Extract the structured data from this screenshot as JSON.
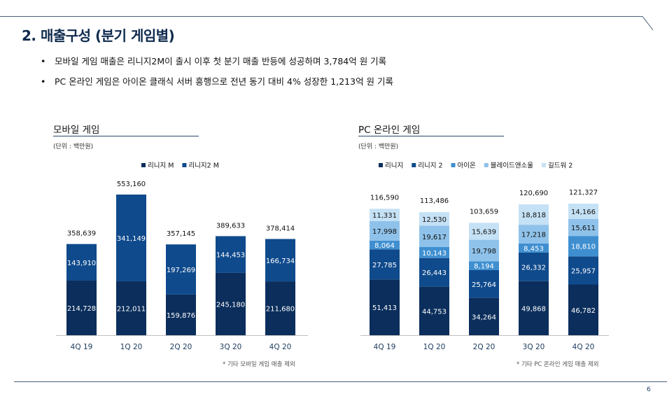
{
  "title": "2. 매출구성 (분기 게임별)",
  "bullets": [
    "모바일 게임 매출은 리니지2M이 출시 이후 첫 분기 매출 반등에 성공하며 3,784억 원 기록",
    "PC 온라인 게임은 아이온 클래식 서버 흥행으로 전년 동기 대비 4% 성장한 1,213억 원 기록"
  ],
  "page_number": "6",
  "colors": {
    "lineage_m": "#0b2e5c",
    "lineage2_m": "#0f4a8c",
    "lineage": "#0b2e5c",
    "lineage2": "#0f4a8c",
    "aion": "#3f8fd0",
    "blade_soul": "#8fc2ea",
    "guild_wars2": "#c5e1f5"
  },
  "chart_data": [
    {
      "type": "bar",
      "stacked": true,
      "title": "모바일 게임",
      "unit": "(단위 : 백만원)",
      "note": "* 기타 모바일 게임 매출 제외",
      "categories": [
        "4Q 19",
        "1Q 20",
        "2Q 20",
        "3Q 20",
        "4Q 20"
      ],
      "series": [
        {
          "name": "리니지 M",
          "values": [
            214728,
            212011,
            159876,
            245180,
            211680
          ]
        },
        {
          "name": "리니지2 M",
          "values": [
            143910,
            341149,
            197269,
            144453,
            166734
          ]
        }
      ],
      "totals": [
        358639,
        553160,
        357145,
        389633,
        378414
      ],
      "legend": "top-center"
    },
    {
      "type": "bar",
      "stacked": true,
      "title": "PC 온라인 게임",
      "unit": "(단위 : 백만원)",
      "note": "* 기타 PC 온라인 게임 매출 제외",
      "categories": [
        "4Q 19",
        "1Q 20",
        "2Q 20",
        "3Q 20",
        "4Q 20"
      ],
      "series": [
        {
          "name": "리니지",
          "values": [
            51413,
            44753,
            34264,
            49868,
            46782
          ]
        },
        {
          "name": "리니지 2",
          "values": [
            27785,
            26443,
            25764,
            26332,
            25957
          ]
        },
        {
          "name": "아이온",
          "values": [
            8064,
            10143,
            8194,
            8453,
            18810
          ]
        },
        {
          "name": "블레이드앤소울",
          "values": [
            17998,
            19617,
            19798,
            17218,
            15611
          ]
        },
        {
          "name": "길드워 2",
          "values": [
            11331,
            12530,
            15639,
            18818,
            14166
          ]
        }
      ],
      "totals": [
        116590,
        113486,
        103659,
        120690,
        121327
      ],
      "legend": "top-center"
    }
  ]
}
